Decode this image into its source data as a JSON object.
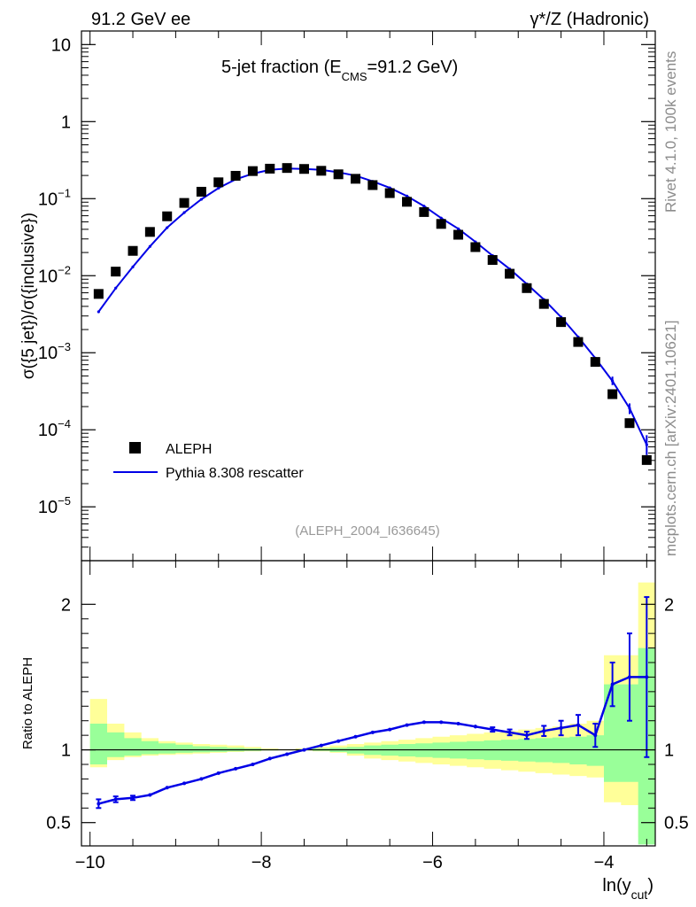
{
  "header": {
    "left": "91.2 GeV ee",
    "right": "γ*/Z (Hadronic)"
  },
  "side_labels": {
    "rivet": "Rivet 4.1.0,  100k events",
    "mcplots": "mcplots.cern.ch [arXiv:2401.10621]"
  },
  "colors": {
    "data": "#000000",
    "mc": "#0000e6",
    "band_inner": "#99ff99",
    "band_outer": "#ffff99",
    "annotation": "#999999"
  },
  "chart_data": [
    {
      "type": "scatter",
      "name": "main",
      "title_main": "5-jet fraction (E",
      "title_sub": "CMS",
      "title_end": "=91.2 GeV)",
      "ylabel": "σ({5 jet})/σ({inclusive})",
      "yscale": "log",
      "ylim": [
        2e-06,
        15
      ],
      "xlim": [
        -10.1,
        -3.4
      ],
      "yticks": [
        {
          "value": 1e-05,
          "base": "10",
          "exp": "−5"
        },
        {
          "value": 0.0001,
          "base": "10",
          "exp": "−4"
        },
        {
          "value": 0.001,
          "base": "10",
          "exp": "−3"
        },
        {
          "value": 0.01,
          "base": "10",
          "exp": "−2"
        },
        {
          "value": 0.1,
          "base": "10",
          "exp": "−1"
        },
        {
          "value": 1,
          "base": "1",
          "exp": ""
        },
        {
          "value": 10,
          "base": "10",
          "exp": ""
        }
      ],
      "annotation": "(ALEPH_2004_I636645)",
      "legend": {
        "position": "bottom-left",
        "entries": [
          "ALEPH",
          "Pythia 8.308 rescatter"
        ]
      },
      "series": [
        {
          "name": "ALEPH",
          "x": [
            -9.9,
            -9.7,
            -9.5,
            -9.3,
            -9.1,
            -8.9,
            -8.7,
            -8.5,
            -8.3,
            -8.1,
            -7.9,
            -7.7,
            -7.5,
            -7.3,
            -7.1,
            -6.9,
            -6.7,
            -6.5,
            -6.3,
            -6.1,
            -5.9,
            -5.7,
            -5.5,
            -5.3,
            -5.1,
            -4.9,
            -4.7,
            -4.5,
            -4.3,
            -4.1,
            -3.9,
            -3.7,
            -3.5
          ],
          "values": [
            0.0058,
            0.0113,
            0.021,
            0.037,
            0.059,
            0.088,
            0.123,
            0.163,
            0.198,
            0.228,
            0.245,
            0.25,
            0.243,
            0.23,
            0.207,
            0.181,
            0.15,
            0.118,
            0.091,
            0.067,
            0.047,
            0.034,
            0.0235,
            0.016,
            0.0106,
            0.0069,
            0.0043,
            0.0025,
            0.00138,
            0.00076,
            0.00029,
            0.000122,
            4.05e-05
          ]
        },
        {
          "name": "Pythia 8.308 rescatter",
          "x": [
            -9.9,
            -9.7,
            -9.5,
            -9.3,
            -9.1,
            -8.9,
            -8.7,
            -8.5,
            -8.3,
            -8.1,
            -7.9,
            -7.7,
            -7.5,
            -7.3,
            -7.1,
            -6.9,
            -6.7,
            -6.5,
            -6.3,
            -6.1,
            -5.9,
            -5.7,
            -5.5,
            -5.3,
            -5.1,
            -4.9,
            -4.7,
            -4.5,
            -4.3,
            -4.1,
            -3.9,
            -3.7,
            -3.5
          ],
          "values": [
            0.0034,
            0.0069,
            0.013,
            0.024,
            0.042,
            0.066,
            0.098,
            0.137,
            0.178,
            0.211,
            0.236,
            0.246,
            0.243,
            0.236,
            0.22,
            0.199,
            0.168,
            0.138,
            0.108,
            0.08,
            0.056,
            0.0406,
            0.0275,
            0.0182,
            0.0122,
            0.0078,
            0.0049,
            0.0029,
            0.0016,
            0.00085,
            0.00043,
            0.00019,
            6.4e-05
          ]
        }
      ]
    },
    {
      "type": "line",
      "name": "ratio",
      "ylabel": "Ratio to ALEPH",
      "xlabel_main": "ln(y",
      "xlabel_sub": "cut",
      "xlabel_end": ")",
      "ylim": [
        0.34,
        2.3
      ],
      "xlim": [
        -10.1,
        -3.4
      ],
      "xticks": [
        -10,
        -8,
        -6,
        -4
      ],
      "xticklabels": [
        "−10",
        "−8",
        "−6",
        "−4"
      ],
      "yticks": [
        0.5,
        1,
        2
      ],
      "yticklabels": [
        "0.5",
        "1",
        "2"
      ],
      "bins": [
        -10.0,
        -9.8,
        -9.6,
        -9.4,
        -9.2,
        -9.0,
        -8.8,
        -8.6,
        -8.4,
        -8.2,
        -8.0,
        -7.8,
        -7.6,
        -7.4,
        -7.2,
        -7.0,
        -6.8,
        -6.6,
        -6.4,
        -6.2,
        -6.0,
        -5.8,
        -5.6,
        -5.4,
        -5.2,
        -5.0,
        -4.8,
        -4.6,
        -4.4,
        -4.2,
        -4.0,
        -3.8,
        -3.6,
        -3.4
      ],
      "band_outer_low": [
        0.88,
        0.93,
        0.95,
        0.96,
        0.965,
        0.97,
        0.975,
        0.98,
        0.985,
        0.99,
        0.995,
        0.997,
        0.995,
        0.99,
        0.98,
        0.96,
        0.94,
        0.93,
        0.92,
        0.91,
        0.9,
        0.89,
        0.88,
        0.87,
        0.86,
        0.85,
        0.84,
        0.83,
        0.82,
        0.81,
        0.64,
        0.62,
        0.4
      ],
      "band_inner_low": [
        0.9,
        0.95,
        0.96,
        0.97,
        0.975,
        0.98,
        0.983,
        0.986,
        0.99,
        0.993,
        0.996,
        0.998,
        0.997,
        0.993,
        0.985,
        0.975,
        0.965,
        0.96,
        0.955,
        0.95,
        0.945,
        0.94,
        0.935,
        0.93,
        0.925,
        0.92,
        0.915,
        0.91,
        0.9,
        0.89,
        0.78,
        0.78,
        0.35
      ],
      "band_inner_high": [
        1.18,
        1.12,
        1.08,
        1.06,
        1.045,
        1.035,
        1.025,
        1.02,
        1.015,
        1.01,
        1.005,
        1.003,
        1.005,
        1.01,
        1.015,
        1.02,
        1.03,
        1.035,
        1.04,
        1.045,
        1.05,
        1.055,
        1.06,
        1.065,
        1.07,
        1.075,
        1.08,
        1.085,
        1.09,
        1.1,
        1.45,
        1.45,
        1.7
      ],
      "band_outer_high": [
        1.35,
        1.18,
        1.12,
        1.08,
        1.06,
        1.05,
        1.04,
        1.035,
        1.03,
        1.02,
        1.01,
        1.005,
        1.01,
        1.02,
        1.03,
        1.04,
        1.05,
        1.06,
        1.07,
        1.08,
        1.09,
        1.1,
        1.11,
        1.12,
        1.13,
        1.14,
        1.15,
        1.16,
        1.18,
        1.2,
        1.65,
        1.65,
        2.15
      ],
      "series": [
        {
          "name": "Pythia 8.308 rescatter / ALEPH",
          "x": [
            -9.9,
            -9.7,
            -9.5,
            -9.3,
            -9.1,
            -8.9,
            -8.7,
            -8.5,
            -8.3,
            -8.1,
            -7.9,
            -7.7,
            -7.5,
            -7.3,
            -7.1,
            -6.9,
            -6.7,
            -6.5,
            -6.3,
            -6.1,
            -5.9,
            -5.7,
            -5.5,
            -5.3,
            -5.1,
            -4.9,
            -4.7,
            -4.5,
            -4.3,
            -4.1,
            -3.9,
            -3.7,
            -3.5
          ],
          "values": [
            0.63,
            0.66,
            0.67,
            0.69,
            0.74,
            0.77,
            0.8,
            0.84,
            0.87,
            0.9,
            0.94,
            0.97,
            1.0,
            1.03,
            1.06,
            1.09,
            1.12,
            1.14,
            1.17,
            1.19,
            1.19,
            1.18,
            1.16,
            1.14,
            1.12,
            1.1,
            1.13,
            1.15,
            1.17,
            1.1,
            1.45,
            1.5,
            1.5
          ],
          "err": [
            0.03,
            0.02,
            0.015,
            0.01,
            0.01,
            0.008,
            0.007,
            0.006,
            0.005,
            0.005,
            0.005,
            0.005,
            0.005,
            0.005,
            0.005,
            0.005,
            0.005,
            0.006,
            0.007,
            0.008,
            0.008,
            0.01,
            0.012,
            0.015,
            0.02,
            0.025,
            0.035,
            0.05,
            0.07,
            0.08,
            0.15,
            0.3,
            0.55
          ]
        }
      ]
    }
  ]
}
